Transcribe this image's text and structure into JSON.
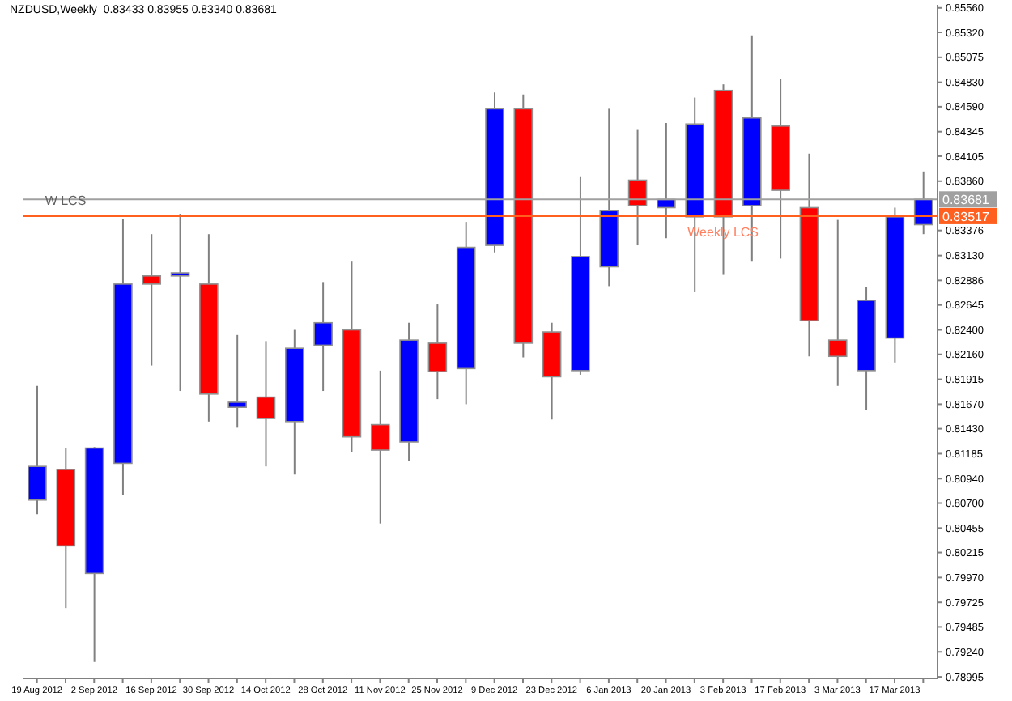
{
  "chart_data": {
    "type": "candlestick",
    "title": "NZDUSD,Weekly  0.83433 0.83955 0.83340 0.83681",
    "categories": [
      "19 Aug 2012",
      null,
      "2 Sep 2012",
      null,
      "16 Sep 2012",
      null,
      "30 Sep 2012",
      null,
      "14 Oct 2012",
      null,
      "28 Oct 2012",
      null,
      "11 Nov 2012",
      null,
      "25 Nov 2012",
      null,
      "9 Dec 2012",
      null,
      "23 Dec 2012",
      null,
      "6 Jan 2013",
      null,
      "20 Jan 2013",
      null,
      "3 Feb 2013",
      null,
      "17 Feb 2013",
      null,
      "3 Mar 2013",
      null,
      "17 Mar 2013",
      null
    ],
    "ohlc": [
      [
        0.8073,
        0.8185,
        0.8059,
        0.8106
      ],
      [
        0.8103,
        0.8124,
        0.7967,
        0.8028
      ],
      [
        0.8001,
        0.8125,
        0.7914,
        0.8124
      ],
      [
        0.8109,
        0.8349,
        0.8078,
        0.8285
      ],
      [
        0.8293,
        0.8334,
        0.8205,
        0.8285
      ],
      [
        0.8293,
        0.8354,
        0.818,
        0.8296
      ],
      [
        0.8285,
        0.8334,
        0.815,
        0.8177
      ],
      [
        0.8164,
        0.8235,
        0.8144,
        0.8169
      ],
      [
        0.8174,
        0.8229,
        0.8106,
        0.8153
      ],
      [
        0.815,
        0.824,
        0.8098,
        0.8222
      ],
      [
        0.8225,
        0.8287,
        0.818,
        0.8247
      ],
      [
        0.824,
        0.8307,
        0.812,
        0.8135
      ],
      [
        0.8147,
        0.82,
        0.805,
        0.8122
      ],
      [
        0.813,
        0.8247,
        0.8111,
        0.823
      ],
      [
        0.8227,
        0.8265,
        0.8172,
        0.8199
      ],
      [
        0.8202,
        0.8346,
        0.8167,
        0.8321
      ],
      [
        0.8323,
        0.8473,
        0.8316,
        0.8457
      ],
      [
        0.8457,
        0.8471,
        0.8213,
        0.8227
      ],
      [
        0.8238,
        0.8247,
        0.8152,
        0.8194
      ],
      [
        0.82,
        0.839,
        0.8196,
        0.8312
      ],
      [
        0.8302,
        0.8457,
        0.8283,
        0.8357
      ],
      [
        0.8387,
        0.8437,
        0.8323,
        0.8362
      ],
      [
        0.836,
        0.8443,
        0.833,
        0.8368
      ],
      [
        0.8351,
        0.8468,
        0.8277,
        0.8442
      ],
      [
        0.8475,
        0.8481,
        0.8294,
        0.8351
      ],
      [
        0.8362,
        0.8529,
        0.8307,
        0.8448
      ],
      [
        0.844,
        0.8486,
        0.831,
        0.8377
      ],
      [
        0.836,
        0.8413,
        0.8214,
        0.8249
      ],
      [
        0.823,
        0.8348,
        0.8185,
        0.8214
      ],
      [
        0.82,
        0.8282,
        0.8161,
        0.8269
      ],
      [
        0.8232,
        0.836,
        0.8208,
        0.8351
      ],
      [
        0.83433,
        0.83955,
        0.8334,
        0.83681
      ]
    ],
    "colors": [
      "#0000ff",
      "#ff0000",
      "#0000ff",
      "#0000ff",
      "#ff0000",
      "#0000ff",
      "#ff0000",
      "#0000ff",
      "#ff0000",
      "#0000ff",
      "#0000ff",
      "#ff0000",
      "#ff0000",
      "#0000ff",
      "#ff0000",
      "#0000ff",
      "#0000ff",
      "#ff0000",
      "#ff0000",
      "#0000ff",
      "#0000ff",
      "#ff0000",
      "#0000ff",
      "#0000ff",
      "#ff0000",
      "#0000ff",
      "#ff0000",
      "#ff0000",
      "#ff0000",
      "#0000ff",
      "#0000ff",
      "#0000ff"
    ],
    "ylim": [
      0.7898,
      0.8559
    ],
    "yticks": [
      {
        "value": 0.8556,
        "label": "0.85560"
      },
      {
        "value": 0.8532,
        "label": "0.85320"
      },
      {
        "value": 0.85075,
        "label": "0.85075"
      },
      {
        "value": 0.8483,
        "label": "0.84830"
      },
      {
        "value": 0.8459,
        "label": "0.84590"
      },
      {
        "value": 0.84345,
        "label": "0.84345"
      },
      {
        "value": 0.84105,
        "label": "0.84105"
      },
      {
        "value": 0.8386,
        "label": "0.83860"
      },
      {
        "value": 0.83376,
        "label": "0.83376"
      },
      {
        "value": 0.8313,
        "label": "0.83130"
      },
      {
        "value": 0.82886,
        "label": "0.82886"
      },
      {
        "value": 0.82645,
        "label": "0.82645"
      },
      {
        "value": 0.824,
        "label": "0.82400"
      },
      {
        "value": 0.8216,
        "label": "0.82160"
      },
      {
        "value": 0.81915,
        "label": "0.81915"
      },
      {
        "value": 0.8167,
        "label": "0.81670"
      },
      {
        "value": 0.8143,
        "label": "0.81430"
      },
      {
        "value": 0.81185,
        "label": "0.81185"
      },
      {
        "value": 0.8094,
        "label": "0.80940"
      },
      {
        "value": 0.807,
        "label": "0.80700"
      },
      {
        "value": 0.80455,
        "label": "0.80455"
      },
      {
        "value": 0.80215,
        "label": "0.80215"
      },
      {
        "value": 0.7997,
        "label": "0.79970"
      },
      {
        "value": 0.79725,
        "label": "0.79725"
      },
      {
        "value": 0.79485,
        "label": "0.79485"
      },
      {
        "value": 0.7924,
        "label": "0.79240"
      },
      {
        "value": 0.78995,
        "label": "0.78995"
      }
    ],
    "ref_lines": [
      {
        "axis": "y",
        "value": 0.83681,
        "label": "0.83681",
        "color": "#a0a0a0"
      },
      {
        "axis": "y",
        "value": 0.83517,
        "label": "0.83517",
        "color": "#ff6020"
      }
    ],
    "annotations": [
      {
        "text": "W LCS",
        "y": 0.83517
      },
      {
        "text": "Weekly LCS",
        "x": "3 Feb 2013",
        "y": 0.83517
      }
    ],
    "grid": false,
    "legend": false
  }
}
